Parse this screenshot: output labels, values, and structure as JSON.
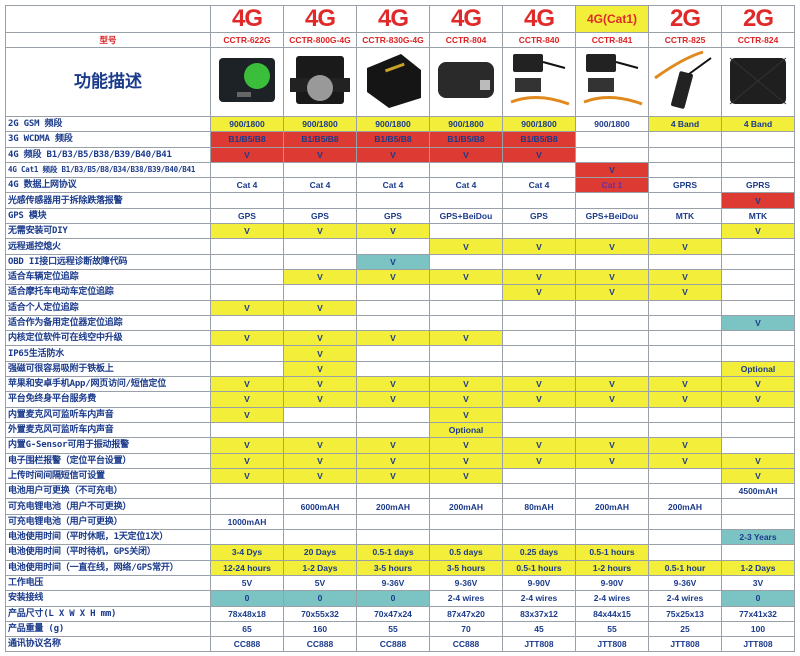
{
  "colors": {
    "y": "#f2ee3a",
    "r": "#dd3a33",
    "t": "#7cc4c4",
    "w": "#ffffff",
    "text": "#1a3a8a",
    "red_text": "#e02a2a"
  },
  "header": {
    "model_label": "型号",
    "feature_title": "功能描述",
    "products": [
      {
        "gen": "4G",
        "model": "CCTR-622G",
        "gen_bg": "w",
        "image": "green-circle-tracker"
      },
      {
        "gen": "4G",
        "model": "CCTR-800G-4G",
        "gen_bg": "w",
        "image": "magnet-tracker"
      },
      {
        "gen": "4G",
        "model": "CCTR-830G-4G",
        "gen_bg": "w",
        "image": "obd-tracker"
      },
      {
        "gen": "4G",
        "model": "CCTR-804",
        "gen_bg": "w",
        "image": "box-tracker"
      },
      {
        "gen": "4G",
        "model": "CCTR-840",
        "gen_bg": "w",
        "image": "wired-tracker"
      },
      {
        "gen": "4G(Cat1)",
        "model": "CCTR-841",
        "gen_bg": "y",
        "image": "wired-tracker"
      },
      {
        "gen": "2G",
        "model": "CCTR-825",
        "gen_bg": "w",
        "image": "slim-wired-tracker"
      },
      {
        "gen": "2G",
        "model": "CCTR-824",
        "gen_bg": "w",
        "image": "battery-box-tracker"
      }
    ]
  },
  "rows": [
    {
      "label": "2G GSM 频段",
      "cells": [
        [
          "900/1800",
          "y"
        ],
        [
          "900/1800",
          "y"
        ],
        [
          "900/1800",
          "y"
        ],
        [
          "900/1800",
          "y"
        ],
        [
          "900/1800",
          "y"
        ],
        [
          "900/1800",
          "w"
        ],
        [
          "4 Band",
          "y"
        ],
        [
          "4 Band",
          "y"
        ]
      ]
    },
    {
      "label": "3G WCDMA 频段",
      "cells": [
        [
          "B1/B5/B8",
          "r"
        ],
        [
          "B1/B5/B8",
          "r"
        ],
        [
          "B1/B5/B8",
          "r"
        ],
        [
          "B1/B5/B8",
          "r"
        ],
        [
          "B1/B5/B8",
          "r"
        ],
        [
          "",
          ""
        ],
        [
          "",
          ""
        ],
        [
          "",
          ""
        ]
      ]
    },
    {
      "label": "4G 频段 B1/B3/B5/B38/B39/B40/B41",
      "cells": [
        [
          "V",
          "r"
        ],
        [
          "V",
          "r"
        ],
        [
          "V",
          "r"
        ],
        [
          "V",
          "r"
        ],
        [
          "V",
          "r"
        ],
        [
          "",
          ""
        ],
        [
          "",
          ""
        ],
        [
          "",
          ""
        ]
      ]
    },
    {
      "label": "4G Cat1 频段 B1/B3/B5/B8/B34/B38/B39/B40/B41",
      "small": true,
      "cells": [
        [
          "",
          ""
        ],
        [
          "",
          ""
        ],
        [
          "",
          ""
        ],
        [
          "",
          ""
        ],
        [
          "",
          ""
        ],
        [
          "V",
          "r"
        ],
        [
          "",
          ""
        ],
        [
          "",
          ""
        ]
      ]
    },
    {
      "label": "4G 数据上网协议",
      "cells": [
        [
          "Cat 4",
          ""
        ],
        [
          "Cat 4",
          ""
        ],
        [
          "Cat 4",
          ""
        ],
        [
          "Cat 4",
          ""
        ],
        [
          "Cat 4",
          ""
        ],
        [
          "Cat 1",
          "r"
        ],
        [
          "GPRS",
          ""
        ],
        [
          "GPRS",
          ""
        ]
      ]
    },
    {
      "label": "光感传感器用于拆除跌落报警",
      "cells": [
        [
          "",
          ""
        ],
        [
          "",
          ""
        ],
        [
          "",
          ""
        ],
        [
          "",
          ""
        ],
        [
          "",
          ""
        ],
        [
          "",
          ""
        ],
        [
          "",
          ""
        ],
        [
          "V",
          "r"
        ]
      ]
    },
    {
      "label": "GPS 模块",
      "cells": [
        [
          "GPS",
          ""
        ],
        [
          "GPS",
          ""
        ],
        [
          "GPS",
          ""
        ],
        [
          "GPS+BeiDou",
          ""
        ],
        [
          "GPS",
          ""
        ],
        [
          "GPS+BeiDou",
          ""
        ],
        [
          "MTK",
          ""
        ],
        [
          "MTK",
          ""
        ]
      ]
    },
    {
      "label": "无需安装可DIY",
      "cells": [
        [
          "V",
          "y"
        ],
        [
          "V",
          "y"
        ],
        [
          "V",
          "y"
        ],
        [
          "",
          ""
        ],
        [
          "",
          ""
        ],
        [
          "",
          ""
        ],
        [
          "",
          ""
        ],
        [
          "V",
          "y"
        ]
      ]
    },
    {
      "label": "远程遥控熄火",
      "cells": [
        [
          "",
          ""
        ],
        [
          "",
          ""
        ],
        [
          "",
          ""
        ],
        [
          "V",
          "y"
        ],
        [
          "V",
          "y"
        ],
        [
          "V",
          "y"
        ],
        [
          "V",
          "y"
        ],
        [
          "",
          ""
        ]
      ]
    },
    {
      "label": "OBD II接口远程诊断故障代码",
      "cells": [
        [
          "",
          ""
        ],
        [
          "",
          ""
        ],
        [
          "V",
          "t"
        ],
        [
          "",
          ""
        ],
        [
          "",
          ""
        ],
        [
          "",
          ""
        ],
        [
          "",
          ""
        ],
        [
          "",
          ""
        ]
      ]
    },
    {
      "label": "适合车辆定位追踪",
      "cells": [
        [
          "",
          ""
        ],
        [
          "V",
          "y"
        ],
        [
          "V",
          "y"
        ],
        [
          "V",
          "y"
        ],
        [
          "V",
          "y"
        ],
        [
          "V",
          "y"
        ],
        [
          "V",
          "y"
        ],
        [
          "",
          ""
        ]
      ]
    },
    {
      "label": "适合摩托车电动车定位追踪",
      "cells": [
        [
          "",
          ""
        ],
        [
          "",
          ""
        ],
        [
          "",
          ""
        ],
        [
          "",
          ""
        ],
        [
          "V",
          "y"
        ],
        [
          "V",
          "y"
        ],
        [
          "V",
          "y"
        ],
        [
          "",
          ""
        ]
      ]
    },
    {
      "label": "适合个人定位追踪",
      "cells": [
        [
          "V",
          "y"
        ],
        [
          "V",
          "y"
        ],
        [
          "",
          ""
        ],
        [
          "",
          ""
        ],
        [
          "",
          ""
        ],
        [
          "",
          ""
        ],
        [
          "",
          ""
        ],
        [
          "",
          ""
        ]
      ]
    },
    {
      "label": "适合作为备用定位器定位追踪",
      "cells": [
        [
          "",
          ""
        ],
        [
          "",
          ""
        ],
        [
          "",
          ""
        ],
        [
          "",
          ""
        ],
        [
          "",
          ""
        ],
        [
          "",
          ""
        ],
        [
          "",
          ""
        ],
        [
          "V",
          "t"
        ]
      ]
    },
    {
      "label": "内核定位软件可在线空中升级",
      "cells": [
        [
          "V",
          "y"
        ],
        [
          "V",
          "y"
        ],
        [
          "V",
          "y"
        ],
        [
          "V",
          "y"
        ],
        [
          "",
          ""
        ],
        [
          "",
          ""
        ],
        [
          "",
          ""
        ],
        [
          "",
          ""
        ]
      ]
    },
    {
      "label": "IP65生活防水",
      "cells": [
        [
          "",
          ""
        ],
        [
          "V",
          "y"
        ],
        [
          "",
          ""
        ],
        [
          "",
          ""
        ],
        [
          "",
          ""
        ],
        [
          "",
          ""
        ],
        [
          "",
          ""
        ],
        [
          "",
          ""
        ]
      ]
    },
    {
      "label": "强磁可很容易吸附于铁板上",
      "cells": [
        [
          "",
          ""
        ],
        [
          "V",
          "y"
        ],
        [
          "",
          ""
        ],
        [
          "",
          ""
        ],
        [
          "",
          ""
        ],
        [
          "",
          ""
        ],
        [
          "",
          ""
        ],
        [
          "Optional",
          "y"
        ]
      ]
    },
    {
      "label": "苹果和安卓手机App/网页访问/短信定位",
      "cells": [
        [
          "V",
          "y"
        ],
        [
          "V",
          "y"
        ],
        [
          "V",
          "y"
        ],
        [
          "V",
          "y"
        ],
        [
          "V",
          "y"
        ],
        [
          "V",
          "y"
        ],
        [
          "V",
          "y"
        ],
        [
          "V",
          "y"
        ]
      ]
    },
    {
      "label": "平台免终身平台服务费",
      "cells": [
        [
          "V",
          "y"
        ],
        [
          "V",
          "y"
        ],
        [
          "V",
          "y"
        ],
        [
          "V",
          "y"
        ],
        [
          "V",
          "y"
        ],
        [
          "V",
          "y"
        ],
        [
          "V",
          "y"
        ],
        [
          "V",
          "y"
        ]
      ]
    },
    {
      "label": "内置麦克风可监听车内声音",
      "cells": [
        [
          "V",
          "y"
        ],
        [
          "",
          ""
        ],
        [
          "",
          ""
        ],
        [
          "V",
          "y"
        ],
        [
          "",
          ""
        ],
        [
          "",
          ""
        ],
        [
          "",
          ""
        ],
        [
          "",
          ""
        ]
      ]
    },
    {
      "label": "外置麦克风可监听车内声音",
      "cells": [
        [
          "",
          ""
        ],
        [
          "",
          ""
        ],
        [
          "",
          ""
        ],
        [
          "Optional",
          "y"
        ],
        [
          "",
          ""
        ],
        [
          "",
          ""
        ],
        [
          "",
          ""
        ],
        [
          "",
          ""
        ]
      ]
    },
    {
      "label": "内置G-Sensor可用于振动报警",
      "cells": [
        [
          "V",
          "y"
        ],
        [
          "V",
          "y"
        ],
        [
          "V",
          "y"
        ],
        [
          "V",
          "y"
        ],
        [
          "V",
          "y"
        ],
        [
          "V",
          "y"
        ],
        [
          "V",
          "y"
        ],
        [
          "",
          ""
        ]
      ]
    },
    {
      "label": "电子围栏报警（定位平台设置）",
      "cells": [
        [
          "V",
          "y"
        ],
        [
          "V",
          "y"
        ],
        [
          "V",
          "y"
        ],
        [
          "V",
          "y"
        ],
        [
          "V",
          "y"
        ],
        [
          "V",
          "y"
        ],
        [
          "V",
          "y"
        ],
        [
          "V",
          "y"
        ]
      ]
    },
    {
      "label": "上传时间间隔短信可设置",
      "cells": [
        [
          "V",
          "y"
        ],
        [
          "V",
          "y"
        ],
        [
          "V",
          "y"
        ],
        [
          "V",
          "y"
        ],
        [
          "",
          ""
        ],
        [
          "",
          ""
        ],
        [
          "",
          ""
        ],
        [
          "V",
          "y"
        ]
      ]
    },
    {
      "label": "电池用户可更换（不可充电）",
      "cells": [
        [
          "",
          ""
        ],
        [
          "",
          ""
        ],
        [
          "",
          ""
        ],
        [
          "",
          ""
        ],
        [
          "",
          ""
        ],
        [
          "",
          ""
        ],
        [
          "",
          ""
        ],
        [
          "4500mAH",
          ""
        ]
      ]
    },
    {
      "label": "可充电锂电池（用户不可更换）",
      "cells": [
        [
          "",
          ""
        ],
        [
          "6000mAH",
          ""
        ],
        [
          "200mAH",
          ""
        ],
        [
          "200mAH",
          ""
        ],
        [
          "80mAH",
          ""
        ],
        [
          "200mAH",
          ""
        ],
        [
          "200mAH",
          ""
        ],
        [
          "",
          ""
        ]
      ]
    },
    {
      "label": "可充电锂电池（用户可更换）",
      "cells": [
        [
          "1000mAH",
          ""
        ],
        [
          "",
          ""
        ],
        [
          "",
          ""
        ],
        [
          "",
          ""
        ],
        [
          "",
          ""
        ],
        [
          "",
          ""
        ],
        [
          "",
          ""
        ],
        [
          "",
          ""
        ]
      ]
    },
    {
      "label": "电池使用时间（平时休眠，1天定位1次）",
      "cells": [
        [
          "",
          ""
        ],
        [
          "",
          ""
        ],
        [
          "",
          ""
        ],
        [
          "",
          ""
        ],
        [
          "",
          ""
        ],
        [
          "",
          ""
        ],
        [
          "",
          ""
        ],
        [
          "2-3 Years",
          "t"
        ]
      ]
    },
    {
      "label": "电池使用时间（平时待机，GPS关闭）",
      "cells": [
        [
          "3-4 Dys",
          "y"
        ],
        [
          "20 Days",
          "y"
        ],
        [
          "0.5-1 days",
          "y"
        ],
        [
          "0.5 days",
          "y"
        ],
        [
          "0.25 days",
          "y"
        ],
        [
          "0.5-1 hours",
          "y"
        ],
        [
          "",
          ""
        ],
        [
          "",
          ""
        ]
      ]
    },
    {
      "label": "电池使用时间（一直在线，网络/GPS常开）",
      "cells": [
        [
          "12-24 hours",
          "y"
        ],
        [
          "1-2 Days",
          "y"
        ],
        [
          "3-5 hours",
          "y"
        ],
        [
          "3-5 hours",
          "y"
        ],
        [
          "0.5-1 hours",
          "y"
        ],
        [
          "1-2 hours",
          "y"
        ],
        [
          "0.5-1 hour",
          "y"
        ],
        [
          "1-2 Days",
          "y"
        ]
      ]
    },
    {
      "label": "工作电压",
      "cells": [
        [
          "5V",
          ""
        ],
        [
          "5V",
          ""
        ],
        [
          "9-36V",
          ""
        ],
        [
          "9-36V",
          ""
        ],
        [
          "9-90V",
          ""
        ],
        [
          "9-90V",
          ""
        ],
        [
          "9-36V",
          ""
        ],
        [
          "3V",
          ""
        ]
      ]
    },
    {
      "label": "安装接线",
      "cells": [
        [
          "0",
          "t"
        ],
        [
          "0",
          "t"
        ],
        [
          "0",
          "t"
        ],
        [
          "2-4 wires",
          ""
        ],
        [
          "2-4 wires",
          ""
        ],
        [
          "2-4 wires",
          ""
        ],
        [
          "2-4 wires",
          ""
        ],
        [
          "0",
          "t"
        ]
      ]
    },
    {
      "label": "产品尺寸(L X W X H mm)",
      "cells": [
        [
          "78x48x18",
          ""
        ],
        [
          "70x55x32",
          ""
        ],
        [
          "70x47x24",
          ""
        ],
        [
          "87x47x20",
          ""
        ],
        [
          "83x37x12",
          ""
        ],
        [
          "84x44x15",
          ""
        ],
        [
          "75x25x13",
          ""
        ],
        [
          "77x41x32",
          ""
        ]
      ]
    },
    {
      "label": "产品重量 (g)",
      "cells": [
        [
          "65",
          ""
        ],
        [
          "160",
          ""
        ],
        [
          "55",
          ""
        ],
        [
          "70",
          ""
        ],
        [
          "45",
          ""
        ],
        [
          "55",
          ""
        ],
        [
          "25",
          ""
        ],
        [
          "100",
          ""
        ]
      ]
    },
    {
      "label": "通讯协议名称",
      "cells": [
        [
          "CC888",
          ""
        ],
        [
          "CC888",
          ""
        ],
        [
          "CC888",
          ""
        ],
        [
          "CC888",
          ""
        ],
        [
          "JTT808",
          ""
        ],
        [
          "JTT808",
          ""
        ],
        [
          "JTT808",
          ""
        ],
        [
          "JTT808",
          ""
        ]
      ]
    }
  ]
}
